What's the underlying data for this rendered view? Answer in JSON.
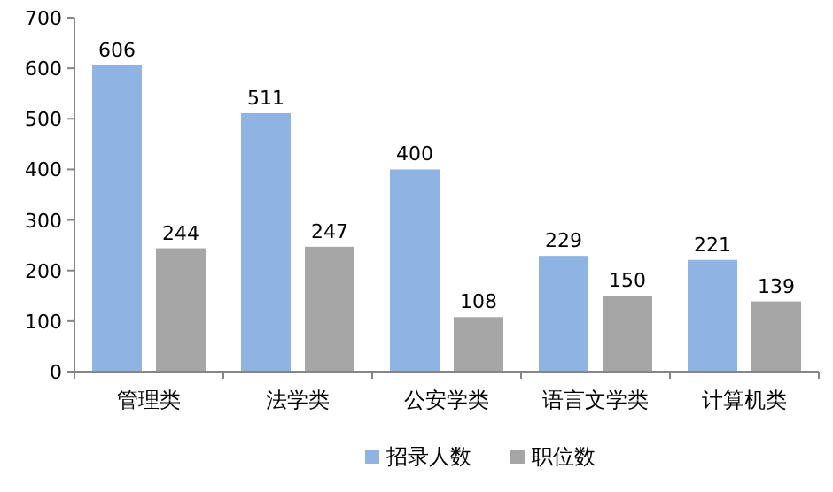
{
  "chart_data": {
    "type": "bar",
    "categories": [
      "管理类",
      "法学类",
      "公安学类",
      "语言文学类",
      "计算机类"
    ],
    "series": [
      {
        "name": "招录人数",
        "color": "#8eb4e3",
        "values": [
          606,
          511,
          400,
          229,
          221
        ]
      },
      {
        "name": "职位数",
        "color": "#a6a6a6",
        "values": [
          244,
          247,
          108,
          150,
          139
        ]
      }
    ],
    "ylim": [
      0,
      700
    ],
    "yticks": [
      0,
      100,
      200,
      300,
      400,
      500,
      600,
      700
    ],
    "data_labels": true,
    "legend": "bottom",
    "grid": false
  }
}
